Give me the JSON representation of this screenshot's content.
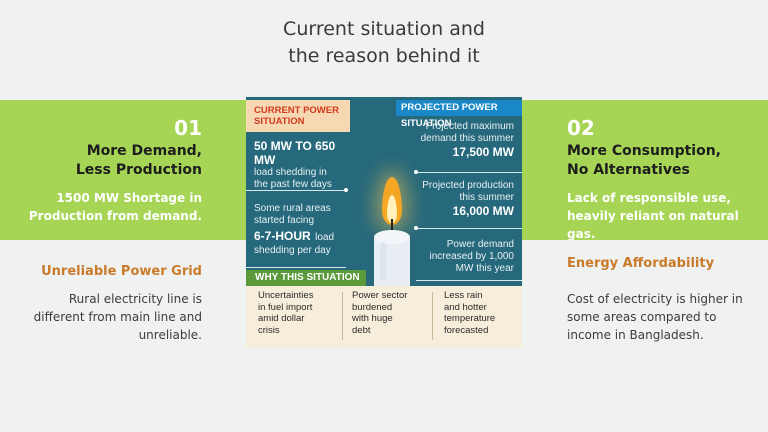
{
  "title": {
    "line1": "Current situation and",
    "line2": "the reason behind it"
  },
  "left_card": {
    "number": "01",
    "heading_line1": "More Demand,",
    "heading_line2": "Less Production",
    "sub_line1": "1500 MW Shortage in",
    "sub_line2": "Production from demand.",
    "orange_title": "Unreliable Power Grid",
    "body_line1": "Rural electricity line is",
    "body_line2": "different from main line and",
    "body_line3": "unreliable."
  },
  "right_card": {
    "number": "02",
    "heading_line1": "More Consumption,",
    "heading_line2": "No Alternatives",
    "sub_line1": "Lack of responsible use,",
    "sub_line2": "heavily reliant on natural gas.",
    "orange_title": "Energy Affordability",
    "body_line1": "Cost of electricity is higher in",
    "body_line2": "some areas compared to",
    "body_line3": "income in Bangladesh."
  },
  "infographic": {
    "current_head_line1": "CURRENT POWER",
    "current_head_line2": "SITUATION",
    "projected_head": "PROJECTED POWER SITUATION",
    "left_blocks": [
      {
        "big": "50 MW TO 650 MW",
        "small1": "load shedding in",
        "small2": "the past few days"
      },
      {
        "small1": "Some rural areas",
        "small2": "started facing",
        "big": "6-7-HOUR",
        "small3": "load",
        "small4": "shedding per day"
      }
    ],
    "right_blocks": [
      {
        "small1": "Projected maximum",
        "small2": "demand this summer",
        "big": "17,500 MW"
      },
      {
        "small1": "Projected production",
        "small2": "this summer",
        "big": "16,000 MW"
      },
      {
        "small1": "Power demand",
        "small2": "increased by 1,000",
        "small3": "MW this year"
      }
    ],
    "why_head": "WHY THIS SITUATION",
    "why_items": [
      {
        "l1": "Uncertainties",
        "l2": "in fuel import",
        "l3": "amid dollar",
        "l4": "crisis"
      },
      {
        "l1": "Power sector",
        "l2": "burdened",
        "l3": "with huge",
        "l4": "debt"
      },
      {
        "l1": "Less rain",
        "l2": "and hotter",
        "l3": "temperature",
        "l4": "forecasted"
      }
    ]
  },
  "colors": {
    "green": "#a6d555",
    "orange": "#c97a2a",
    "panel": "#26697c",
    "accent_blue": "#1a88c7"
  }
}
